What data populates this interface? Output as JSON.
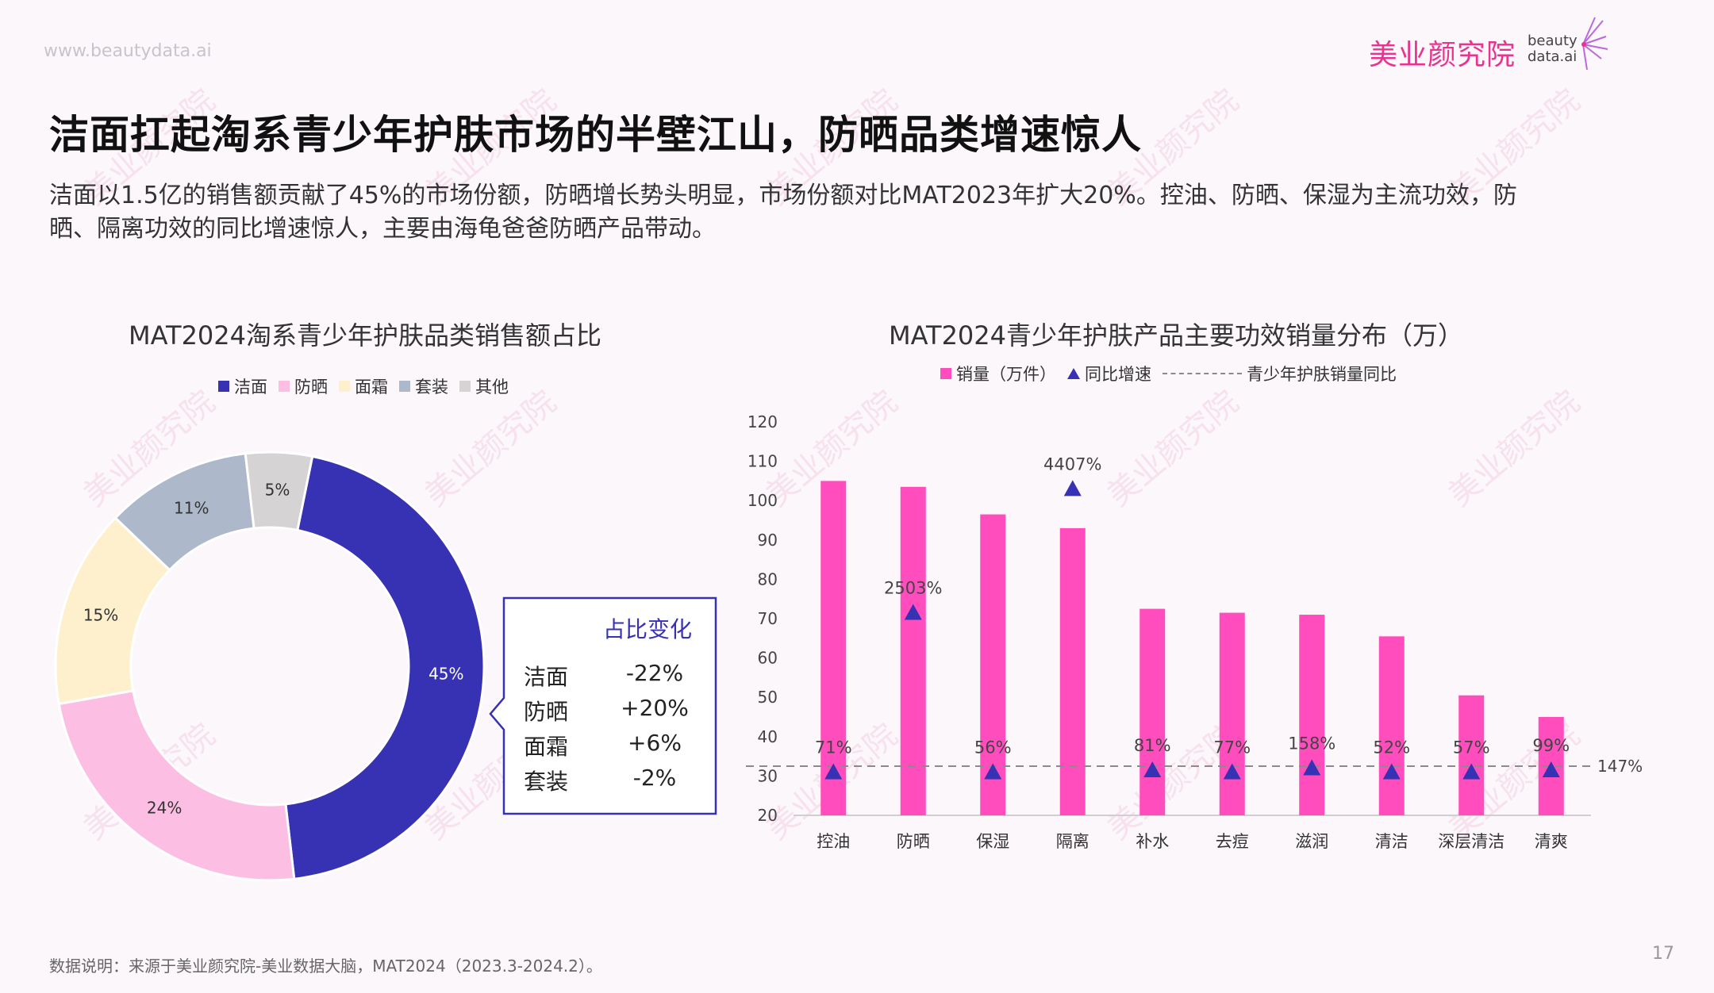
{
  "site_url": "www.beautydata.ai",
  "logo": {
    "name": "美业颜究院",
    "sub1": "beauty",
    "sub2": "data.ai"
  },
  "watermark_text": "美业颜究院",
  "headline": "洁面扛起淘系青少年护肤市场的半壁江山，防晒品类增速惊人",
  "summary": "洁面以1.5亿的销售额贡献了45%的市场份额，防晒增长势头明显，市场份额对比MAT2023年扩大20%。控油、防晒、保湿为主流功效，防晒、隔离功效的同比增速惊人，主要由海龟爸爸防晒产品带动。",
  "left_chart": {
    "title": "MAT2024淘系青少年护肤品类销售额占比"
  },
  "right_chart": {
    "title": "MAT2024青少年护肤产品主要功效销量分布（万）"
  },
  "share_change": {
    "title": "占比变化",
    "rows": [
      {
        "name": "洁面",
        "value": "-22%"
      },
      {
        "name": "防晒",
        "value": "+20%"
      },
      {
        "name": "面霜",
        "value": "+6%"
      },
      {
        "name": "套装",
        "value": "-2%"
      }
    ]
  },
  "chart_data": [
    {
      "type": "pie",
      "donut": true,
      "title": "MAT2024淘系青少年护肤品类销售额占比",
      "legend_position": "top",
      "categories": [
        "洁面",
        "防晒",
        "面霜",
        "套装",
        "其他"
      ],
      "values": [
        45,
        24,
        15,
        11,
        5
      ],
      "labels": [
        "45%",
        "24%",
        "15%",
        "11%",
        "5%"
      ],
      "colors": [
        "#3731b3",
        "#fcbfe3",
        "#fef0cc",
        "#adb9cb",
        "#d5d3d4"
      ]
    },
    {
      "type": "bar",
      "title": "MAT2024青少年护肤产品主要功效销量分布（万）",
      "legend_position": "top",
      "categories": [
        "控油",
        "防晒",
        "保湿",
        "隔离",
        "补水",
        "去痘",
        "滋润",
        "清洁",
        "深层清洁",
        "清爽"
      ],
      "ylim": [
        20,
        120
      ],
      "yticks": [
        20,
        30,
        40,
        50,
        60,
        70,
        80,
        90,
        100,
        110,
        120
      ],
      "grid": false,
      "series": [
        {
          "name": "销量（万件）",
          "kind": "bar",
          "color": "#ff4dbd",
          "values": [
            105,
            103.5,
            96.5,
            93,
            72.5,
            71.5,
            71,
            65.5,
            50.5,
            45
          ]
        },
        {
          "name": "同比增速",
          "kind": "marker",
          "color": "#3731b3",
          "y_positions": [
            31,
            71.5,
            31,
            103,
            31.5,
            31,
            32,
            31,
            31,
            31.5
          ],
          "labels": [
            "71%",
            "2503%",
            "56%",
            "4407%",
            "81%",
            "77%",
            "158%",
            "52%",
            "57%",
            "99%"
          ]
        },
        {
          "name": "青少年护肤销量同比",
          "kind": "reference_line",
          "color": "#8a8a8a",
          "y": 32.5,
          "label": "147%"
        }
      ],
      "legend": [
        {
          "label": "销量（万件）",
          "symbol": "square",
          "color": "#ff4dbd"
        },
        {
          "label": "同比增速",
          "symbol": "triangle",
          "color": "#3731b3"
        },
        {
          "label": "青少年护肤销量同比",
          "symbol": "dashed-line",
          "color": "#8a8a8a"
        }
      ]
    }
  ],
  "source_note": "数据说明：来源于美业颜究院-美业数据大脑，MAT2024（2023.3-2024.2）。",
  "page_number": "17"
}
